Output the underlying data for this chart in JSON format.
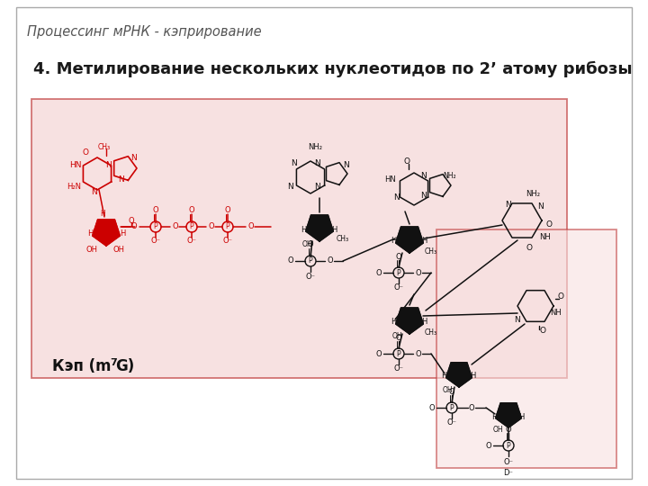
{
  "title": "4. Метилирование нескольких нуклеотидов по 2’ атому рибозы",
  "subtitle": "Процессинг мРНК - кэприрование",
  "cap_label": "Кэп (m",
  "cap_label2": "G)",
  "bg_color": "#ffffff",
  "outer_border": "#aaaaaa",
  "box_border": "#c04040",
  "title_color": "#1a1a1a",
  "subtitle_color": "#555555",
  "RED": "#cc0000",
  "BLK": "#111111",
  "pink_bg": "#f5d5d5",
  "pink_bg2": "#f8e0e0",
  "pink_alpha": 0.6
}
